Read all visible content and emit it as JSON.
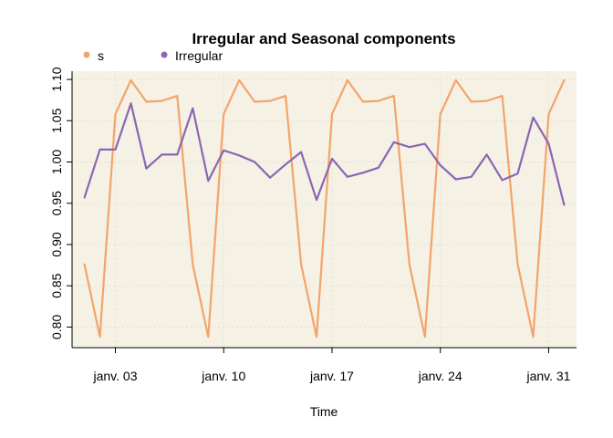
{
  "chart_data": {
    "type": "line",
    "title": "Irregular and Seasonal components",
    "xlabel": "Time",
    "ylabel": "",
    "x_tick_labels": [
      "janv. 03",
      "janv. 10",
      "janv. 17",
      "janv. 24",
      "janv. 31"
    ],
    "x_tick_days": [
      3,
      10,
      17,
      24,
      31
    ],
    "x": [
      1,
      2,
      3,
      4,
      5,
      6,
      7,
      8,
      9,
      10,
      11,
      12,
      13,
      14,
      15,
      16,
      17,
      18,
      19,
      20,
      21,
      22,
      23,
      24,
      25,
      26,
      27,
      28,
      29,
      30,
      31,
      32
    ],
    "xlim": [
      0.2,
      32.8
    ],
    "ylim": [
      0.775,
      1.11
    ],
    "y_ticks": [
      "0.80",
      "0.85",
      "0.90",
      "0.95",
      "1.00",
      "1.05",
      "1.10"
    ],
    "grid": true,
    "legend_position": "top-left",
    "panel_color": "#f5f1e5",
    "grid_color": "#e3dfcf",
    "series": [
      {
        "name": "s",
        "color": "#f4a46a",
        "values": [
          0.876,
          0.788,
          1.058,
          1.099,
          1.073,
          1.074,
          1.08,
          0.876,
          0.788,
          1.058,
          1.099,
          1.073,
          1.074,
          1.08,
          0.876,
          0.788,
          1.058,
          1.099,
          1.073,
          1.074,
          1.08,
          0.876,
          0.788,
          1.058,
          1.099,
          1.073,
          1.074,
          1.08,
          0.876,
          0.788,
          1.058,
          1.099
        ]
      },
      {
        "name": "Irregular",
        "color": "#8b66b4",
        "values": [
          0.957,
          1.015,
          1.015,
          1.071,
          0.992,
          1.009,
          1.009,
          1.065,
          0.977,
          1.014,
          1.008,
          1.0,
          0.981,
          0.997,
          1.012,
          0.954,
          1.004,
          0.982,
          0.987,
          0.993,
          1.024,
          1.018,
          1.022,
          0.996,
          0.979,
          0.982,
          1.009,
          0.978,
          0.986,
          1.054,
          1.022,
          0.948
        ]
      }
    ]
  }
}
